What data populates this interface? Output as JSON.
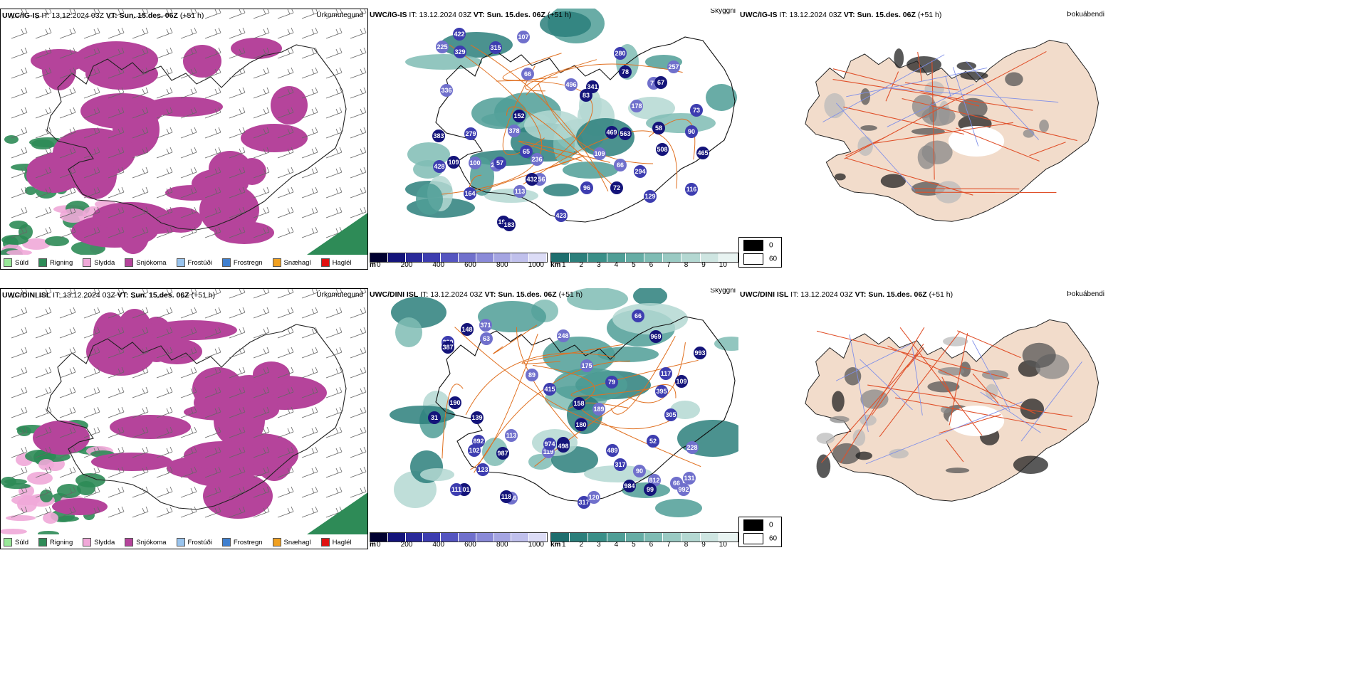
{
  "rows": [
    {
      "model": "UWC/IG-IS",
      "it_label": "IT:",
      "it_value": "13.12.2024 03Z",
      "vt_label": "VT:",
      "vt_value": "Sun. 15.des. 06Z",
      "lead": "(+51 h)",
      "ptype_title": "Úrkomutegund",
      "ceiling_title": "Skyggni",
      "fog_title": "Þokuábendi",
      "ceiling_labels": [
        "508",
        "279",
        "178",
        "469",
        "428",
        "378",
        "383",
        "315",
        "109",
        "192",
        "422",
        "225",
        "78",
        "116",
        "257",
        "563",
        "164",
        "496",
        "341",
        "73",
        "212",
        "72",
        "129",
        "256",
        "152",
        "90",
        "113",
        "58",
        "294",
        "66",
        "83",
        "96",
        "77",
        "67",
        "280",
        "336",
        "465",
        "423",
        "236",
        "432",
        "57",
        "100",
        "183",
        "65",
        "66",
        "109",
        "329",
        "107"
      ]
    },
    {
      "model": "UWC/DINI ISL",
      "it_label": "IT:",
      "it_value": "13.12.2024 03Z",
      "vt_label": "VT:",
      "vt_value": "Sun. 15.des. 06Z",
      "lead": "(+51 h)",
      "ptype_title": "Úrkomutegund",
      "ceiling_title": "Skyggni",
      "fog_title": "Þokuábendi",
      "ceiling_labels": [
        "987",
        "317",
        "119",
        "993",
        "974",
        "248",
        "91",
        "123",
        "371",
        "190",
        "102",
        "66",
        "101",
        "489",
        "992",
        "109",
        "290",
        "189",
        "969",
        "79",
        "366",
        "139",
        "52",
        "113",
        "118",
        "395",
        "131",
        "498",
        "111",
        "120",
        "148",
        "305",
        "175",
        "158",
        "320",
        "63",
        "387",
        "415",
        "812",
        "31",
        "117",
        "90",
        "984",
        "892",
        "89",
        "180",
        "317",
        "228",
        "99",
        "66"
      ]
    }
  ],
  "ptype_legend": [
    {
      "label": "Súld",
      "color": "#98e898"
    },
    {
      "label": "Rigning",
      "color": "#2e8b57"
    },
    {
      "label": "Slydda",
      "color": "#f0a8d8"
    },
    {
      "label": "Snjókoma",
      "color": "#b5449b"
    },
    {
      "label": "Frostúði",
      "color": "#99c4ee"
    },
    {
      "label": "Frostregn",
      "color": "#3f7fcf"
    },
    {
      "label": "Snæhagl",
      "color": "#f0a020"
    },
    {
      "label": "Haglél",
      "color": "#e01010"
    }
  ],
  "ceiling_scale": {
    "unit": "m",
    "ticks": [
      "0",
      "200",
      "400",
      "600",
      "800",
      "1000"
    ],
    "colors": [
      "#000030",
      "#14147a",
      "#2a2a9a",
      "#3d3db0",
      "#5555c0",
      "#7070cc",
      "#8a8ad8",
      "#a5a5e2",
      "#c0c0ec",
      "#dcdcf6"
    ]
  },
  "visibility_scale": {
    "unit": "km",
    "ticks": [
      "1",
      "2",
      "3",
      "4",
      "5",
      "6",
      "7",
      "8",
      "9",
      "10"
    ],
    "colors": [
      "#1e6e6e",
      "#2c7f7b",
      "#3a8f88",
      "#4f9e96",
      "#66ada5",
      "#7fbcb4",
      "#9acac3",
      "#b4d8d2",
      "#cee5e1",
      "#e8f3f1"
    ]
  },
  "fog_scale": {
    "ticks": [
      "0",
      "60"
    ],
    "colors": [
      "#000000",
      "#ffffff"
    ]
  }
}
